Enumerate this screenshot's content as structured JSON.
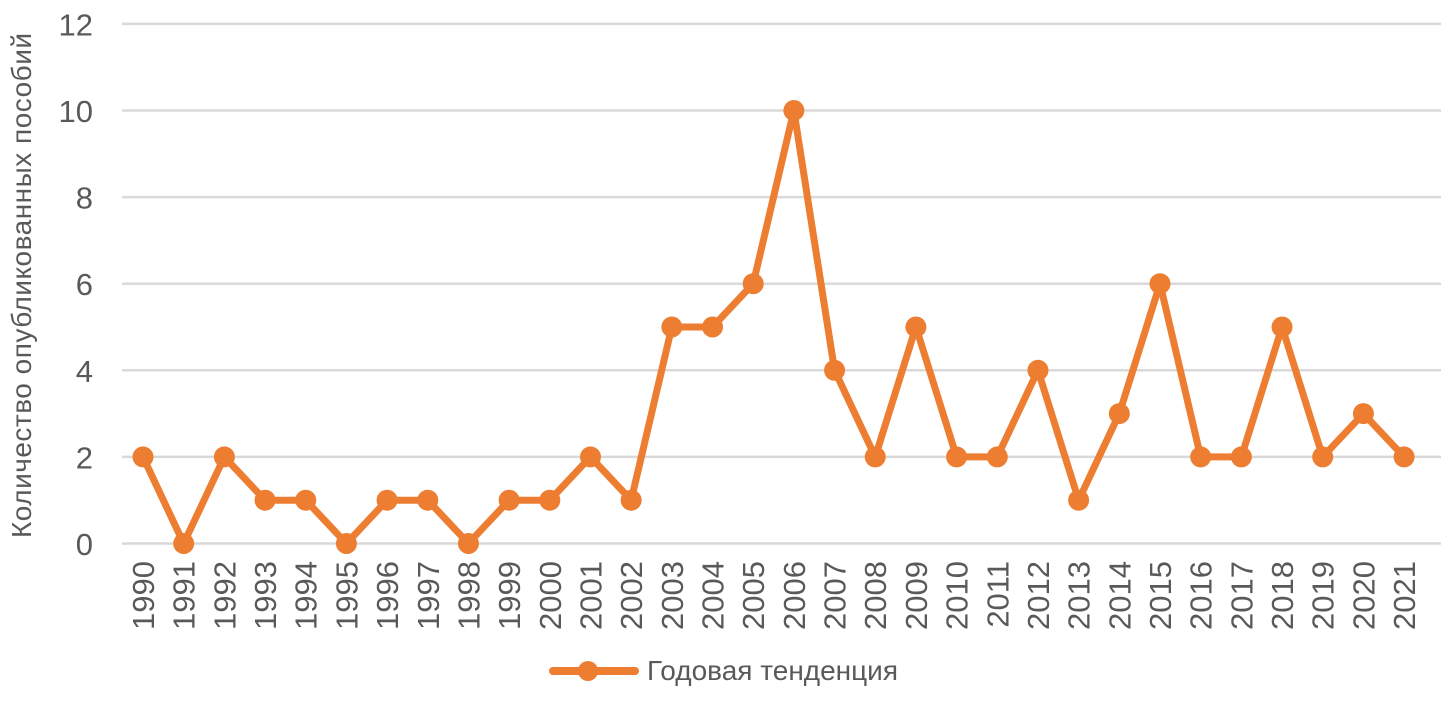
{
  "chart_data": {
    "type": "line",
    "title": "",
    "xlabel": "",
    "ylabel": "Количество опубликованных пособий",
    "categories": [
      "1990",
      "1991",
      "1992",
      "1993",
      "1994",
      "1995",
      "1996",
      "1997",
      "1998",
      "1999",
      "2000",
      "2001",
      "2002",
      "2003",
      "2004",
      "2005",
      "2006",
      "2007",
      "2008",
      "2009",
      "2010",
      "2011",
      "2012",
      "2013",
      "2014",
      "2015",
      "2016",
      "2017",
      "2018",
      "2019",
      "2020",
      "2021"
    ],
    "series": [
      {
        "name": "Годовая тенденция",
        "values": [
          2,
          0,
          2,
          1,
          1,
          0,
          1,
          1,
          0,
          1,
          1,
          2,
          1,
          5,
          5,
          6,
          10,
          4,
          2,
          5,
          2,
          2,
          4,
          1,
          3,
          6,
          2,
          2,
          5,
          2,
          3,
          2
        ],
        "color": "#ED7D31",
        "marker": "circle"
      }
    ],
    "ylim": [
      0,
      12
    ],
    "yticks": [
      0,
      2,
      4,
      6,
      8,
      10,
      12
    ],
    "grid": true,
    "legend_position": "bottom",
    "colors": {
      "line": "#ED7D31",
      "gridline": "#D9D9D9",
      "tick_label": "#595959",
      "axis_label": "#595959"
    }
  }
}
